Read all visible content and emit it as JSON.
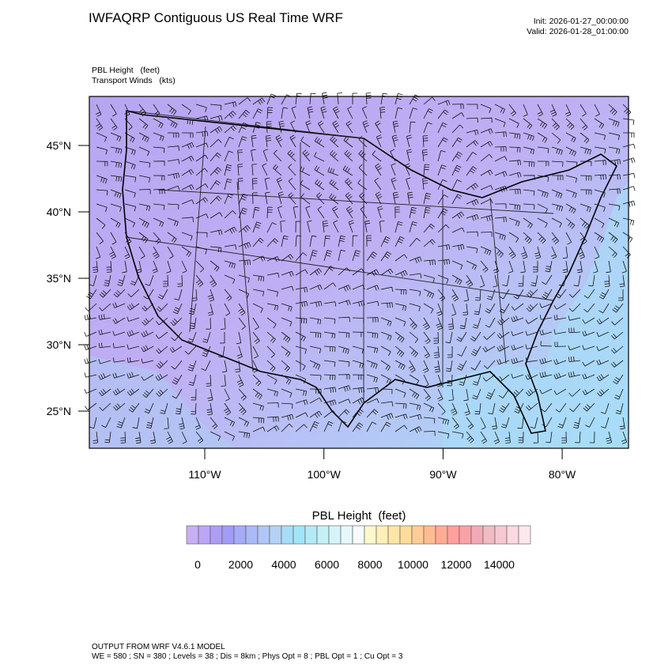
{
  "header": {
    "title": "IWFAQRP Contiguous US Real Time WRF",
    "init": "Init: 2026-01-27_00:00:00",
    "valid": "Valid: 2026-01-28_01:00:00"
  },
  "plot": {
    "fields": [
      "PBL Height   (feet)",
      "Transport Winds   (kts)"
    ],
    "lat_labels": [
      "45°N",
      "40°N",
      "35°N",
      "30°N",
      "25°N"
    ],
    "lon_labels": [
      "110°W",
      "100°W",
      "90°W",
      "80°W"
    ]
  },
  "colorbar": {
    "title": "PBL Height  (feet)",
    "labels": [
      "0",
      "2000",
      "4000",
      "6000",
      "8000",
      "10000",
      "12000",
      "14000"
    ],
    "colors": [
      "#c9aef5",
      "#bba6f5",
      "#ad9ef5",
      "#a19cf6",
      "#a4acf6",
      "#aabaf6",
      "#b0c6f6",
      "#b4d2f6",
      "#a8dcf8",
      "#a2e4f8",
      "#b2eaf8",
      "#c4f0f8",
      "#d4f4fa",
      "#e6f8fb",
      "#f4fbfc",
      "#fff7cc",
      "#ffefb8",
      "#ffe6a8",
      "#ffdc9c",
      "#ffcc96",
      "#ffbc92",
      "#ffac94",
      "#ffa09c",
      "#f8a2a6",
      "#f2aab4",
      "#f2bac4",
      "#f8c8d2",
      "#fcd8e0",
      "#fde8ee"
    ]
  },
  "footer": [
    "OUTPUT FROM WRF V4.6.1 MODEL",
    "WE = 580 ; SN = 380 ; Levels = 38 ; Dis = 8km ; Phys Opt = 8 ; PBL Opt = 1 ; Cu Opt = 3"
  ]
}
